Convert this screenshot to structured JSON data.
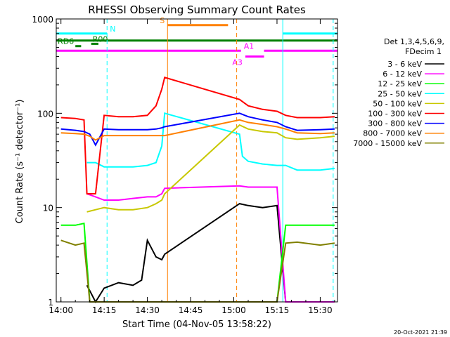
{
  "chart_data": {
    "type": "line",
    "title": "RHESSI Observing Summary Count Rates",
    "xlabel": "Start Time (04-Nov-05 13:58:22)",
    "ylabel": "Count Rate (s⁻¹ detector⁻¹)",
    "y_scale": "log",
    "ylim": [
      1,
      1000
    ],
    "xlim": [
      "13:58:22",
      "15:36:00"
    ],
    "x_ticks": [
      "14:00",
      "14:15",
      "14:30",
      "14:45",
      "15:00",
      "15:15",
      "15:30"
    ],
    "y_ticks": [
      "1",
      "10",
      "100",
      "1000"
    ],
    "legend_header": [
      "Det 1,3,4,5,6,9,",
      "FDecim 1"
    ],
    "legend_position": "right",
    "timestamp": "20-Oct-2021 21:39",
    "colors": {
      "attenuator_s": "#ff8000",
      "night": "#00ffff",
      "saa": "#ff8000"
    },
    "flags": [
      {
        "label": "N",
        "color": "#00ffff",
        "segments": [
          [
            "13:58:22",
            "14:16:00"
          ],
          [
            "15:17:00",
            "15:36:00"
          ]
        ],
        "level": 700
      },
      {
        "label": "S",
        "color": "#ff8000",
        "segments": [
          [
            "14:37:00",
            "14:58:00"
          ]
        ],
        "level": 860
      },
      {
        "label": "",
        "color": "#008000",
        "segments": [
          [
            "13:58:22",
            "15:36:00"
          ]
        ],
        "level": 590
      },
      {
        "label": "R00",
        "color": "#008000",
        "segments": [
          [
            "14:10:30",
            "14:13:00"
          ]
        ],
        "level": 545
      },
      {
        "label": "RD6",
        "color": "#008000",
        "segments": [
          [
            "14:05:00",
            "14:07:00"
          ]
        ],
        "level": 515
      },
      {
        "label": "A1",
        "color": "#ff00ff",
        "segments": [
          [
            "13:58:22",
            "15:02:30"
          ],
          [
            "15:10:30",
            "15:36:00"
          ]
        ],
        "level": 460
      },
      {
        "label": "A3",
        "color": "#ff00ff",
        "segments": [
          [
            "15:04:00",
            "15:10:30"
          ]
        ],
        "level": 400
      }
    ],
    "vlines": [
      {
        "time": "14:16:00",
        "color": "#00ffff",
        "style": "dashed"
      },
      {
        "time": "14:37:00",
        "color": "#ff8000",
        "style": "solid"
      },
      {
        "time": "15:01:00",
        "color": "#ff8000",
        "style": "dashed"
      },
      {
        "time": "15:17:00",
        "color": "#00ffff",
        "style": "solid"
      },
      {
        "time": "15:34:30",
        "color": "#00ffff",
        "style": "dashed"
      }
    ],
    "series": [
      {
        "name": "3 - 6 keV",
        "color": "#000000",
        "x": [
          "14:09",
          "14:12",
          "14:15",
          "14:20",
          "14:25",
          "14:28",
          "14:30",
          "14:33",
          "14:35",
          "14:36",
          "15:02",
          "15:05",
          "15:10",
          "15:15",
          "15:18",
          "15:22",
          "15:30",
          "15:35"
        ],
        "y": [
          1.5,
          1.0,
          1.4,
          1.6,
          1.5,
          1.7,
          4.5,
          3.0,
          2.8,
          3.2,
          11,
          10.5,
          10,
          10.5,
          1.0,
          1.0,
          1.0,
          1.0
        ]
      },
      {
        "name": "6 - 12 keV",
        "color": "#ff00ff",
        "x": [
          "14:09",
          "14:12",
          "14:15",
          "14:20",
          "14:25",
          "14:30",
          "14:33",
          "14:35",
          "14:36",
          "15:02",
          "15:05",
          "15:10",
          "15:15",
          "15:18",
          "15:22",
          "15:30",
          "15:35"
        ],
        "y": [
          14,
          13,
          12,
          12,
          12.5,
          13,
          13,
          14,
          16,
          17,
          16.5,
          16.5,
          16.5,
          1.0,
          1.0,
          1.0,
          1.0
        ]
      },
      {
        "name": "12 - 25 keV",
        "color": "#00ff00",
        "x": [
          "14:00",
          "14:05",
          "14:08",
          "14:10",
          "14:12",
          "14:15",
          "14:20",
          "14:25",
          "14:30",
          "14:33",
          "14:35",
          "14:36",
          "15:02",
          "15:05",
          "15:10",
          "15:15",
          "15:18",
          "15:22",
          "15:30",
          "15:35"
        ],
        "y": [
          6.5,
          6.5,
          6.8,
          1.0,
          1.0,
          1.0,
          1.0,
          1.0,
          1.0,
          1.0,
          1.0,
          1.0,
          1.0,
          1.0,
          1.0,
          1.0,
          6.5,
          6.5,
          6.5,
          6.5
        ]
      },
      {
        "name": "25 - 50 keV",
        "color": "#00ffff",
        "x": [
          "14:09",
          "14:12",
          "14:15",
          "14:20",
          "14:25",
          "14:30",
          "14:33",
          "14:35",
          "14:36",
          "15:02",
          "15:03",
          "15:05",
          "15:10",
          "15:15",
          "15:18",
          "15:22",
          "15:30",
          "15:35"
        ],
        "y": [
          30,
          30,
          27,
          27,
          27,
          28,
          30,
          45,
          100,
          60,
          35,
          31,
          29,
          28,
          28,
          25,
          25,
          26
        ]
      },
      {
        "name": "50 - 100 keV",
        "color": "#c8c800",
        "x": [
          "14:09",
          "14:12",
          "14:15",
          "14:20",
          "14:25",
          "14:30",
          "14:33",
          "14:35",
          "14:36",
          "15:02",
          "15:05",
          "15:10",
          "15:15",
          "15:18",
          "15:22",
          "15:30",
          "15:35"
        ],
        "y": [
          9,
          9.5,
          10,
          9.5,
          9.5,
          10,
          11,
          12,
          14,
          75,
          68,
          64,
          62,
          55,
          53,
          55,
          57
        ]
      },
      {
        "name": "100 - 300 keV",
        "color": "#ff0000",
        "x": [
          "14:00",
          "14:05",
          "14:08",
          "14:09",
          "14:12",
          "14:15",
          "14:20",
          "14:25",
          "14:30",
          "14:33",
          "14:35",
          "14:36",
          "15:02",
          "15:05",
          "15:10",
          "15:15",
          "15:18",
          "15:22",
          "15:30",
          "15:35"
        ],
        "y": [
          90,
          88,
          85,
          14,
          14,
          95,
          92,
          92,
          95,
          120,
          180,
          240,
          140,
          120,
          110,
          105,
          95,
          90,
          90,
          92
        ]
      },
      {
        "name": "300 - 800 keV",
        "color": "#0000ff",
        "x": [
          "14:00",
          "14:05",
          "14:08",
          "14:10",
          "14:12",
          "14:15",
          "14:20",
          "14:25",
          "14:30",
          "14:33",
          "14:35",
          "14:36",
          "15:02",
          "15:05",
          "15:10",
          "15:15",
          "15:18",
          "15:22",
          "15:30",
          "15:35"
        ],
        "y": [
          68,
          66,
          64,
          60,
          46,
          68,
          67,
          67,
          67,
          68,
          70,
          72,
          100,
          92,
          85,
          80,
          72,
          66,
          67,
          68
        ]
      },
      {
        "name": "800 - 7000 keV",
        "color": "#ff8000",
        "x": [
          "14:00",
          "14:05",
          "14:08",
          "14:10",
          "14:12",
          "14:15",
          "14:20",
          "14:25",
          "14:30",
          "14:33",
          "14:35",
          "14:36",
          "15:02",
          "15:05",
          "15:10",
          "15:15",
          "15:18",
          "15:22",
          "15:30",
          "15:35"
        ],
        "y": [
          62,
          61,
          60,
          57,
          52,
          58,
          58,
          58,
          58,
          58,
          58,
          58,
          85,
          80,
          76,
          72,
          68,
          62,
          61,
          62
        ]
      },
      {
        "name": "7000 - 15000 keV",
        "color": "#808000",
        "x": [
          "14:00",
          "14:05",
          "14:08",
          "14:10",
          "14:12",
          "14:15",
          "14:20",
          "14:25",
          "14:30",
          "14:33",
          "14:35",
          "14:36",
          "15:02",
          "15:05",
          "15:10",
          "15:15",
          "15:18",
          "15:22",
          "15:30",
          "15:35"
        ],
        "y": [
          4.5,
          4.0,
          4.2,
          1.0,
          1.0,
          1.0,
          1.0,
          1.0,
          1.0,
          1.0,
          1.0,
          1.0,
          1.0,
          1.0,
          1.0,
          1.0,
          4.2,
          4.3,
          4.0,
          4.2
        ]
      }
    ]
  }
}
